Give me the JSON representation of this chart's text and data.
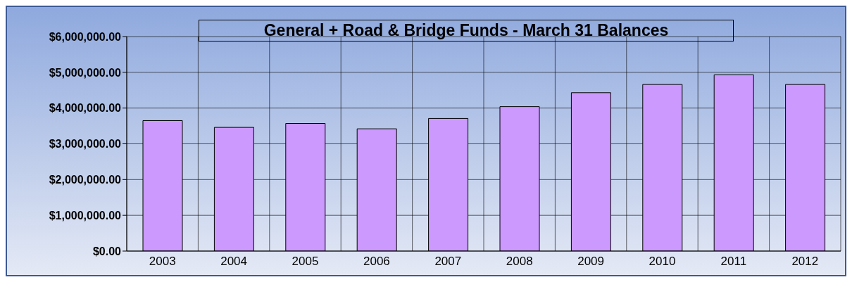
{
  "chart_data": {
    "type": "bar",
    "title": "General + Road & Bridge Funds - March 31 Balances",
    "categories": [
      "2003",
      "2004",
      "2005",
      "2006",
      "2007",
      "2008",
      "2009",
      "2010",
      "2011",
      "2012"
    ],
    "values": [
      3650000,
      3460000,
      3570000,
      3420000,
      3710000,
      4040000,
      4430000,
      4660000,
      4930000,
      4660000
    ],
    "color": "#cc99ff",
    "ylim": [
      0,
      6000000
    ],
    "yticks": [
      {
        "value": 0,
        "label": "$0.00"
      },
      {
        "value": 1000000,
        "label": "$1,000,000.00"
      },
      {
        "value": 2000000,
        "label": "$2,000,000.00"
      },
      {
        "value": 3000000,
        "label": "$3,000,000.00"
      },
      {
        "value": 4000000,
        "label": "$4,000,000.00"
      },
      {
        "value": 5000000,
        "label": "$5,000,000.00"
      },
      {
        "value": 6000000,
        "label": "$6,000,000.00"
      }
    ],
    "grid": true,
    "legend": false
  }
}
